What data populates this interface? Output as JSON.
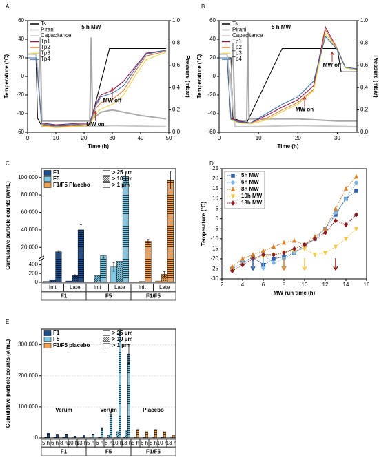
{
  "chart_data": [
    {
      "type": "line",
      "panel": "A",
      "annotations": [
        "5 h MW",
        "MW on",
        "MW off"
      ],
      "xlabel": "Time (h)",
      "ylabel": "Temperature (°C)",
      "y2label": "Pressure (mbar)",
      "xlim": [
        0,
        50
      ],
      "xticks": [
        0,
        10,
        20,
        30,
        40,
        50
      ],
      "ylim": [
        -60,
        60
      ],
      "yticks": [
        -60,
        -40,
        -20,
        0,
        20,
        40,
        60
      ],
      "y2lim": [
        0,
        1
      ],
      "y2ticks": [
        {
          "value": 0,
          "label": "0.0"
        },
        0.2,
        0.4,
        0.6,
        0.8,
        {
          "value": 1,
          "label": "1.0"
        }
      ],
      "series": [
        {
          "name": "Ts",
          "color": "#000000",
          "x": [
            0,
            3,
            3.5,
            5,
            22,
            29,
            49
          ],
          "values": [
            20,
            20,
            -45,
            -53,
            -53,
            30,
            30
          ]
        },
        {
          "name": "Pirani",
          "color": "#a8a8a8",
          "axis": "y2",
          "x": [
            0,
            3,
            4,
            4.5,
            5,
            22,
            22.5,
            23,
            26,
            30,
            40,
            49
          ],
          "values": [
            0.7,
            0.7,
            0.45,
            0.85,
            0.1,
            0.1,
            0.85,
            0.12,
            0.18,
            0.2,
            0.15,
            0.12
          ]
        },
        {
          "name": "Capacitance",
          "color": "#c8c8c8",
          "axis": "y2",
          "x": [
            0,
            3,
            4,
            5,
            22,
            23,
            30,
            49
          ],
          "values": [
            0.7,
            0.7,
            0.4,
            0.05,
            0.05,
            0.05,
            0.06,
            0.05
          ]
        },
        {
          "name": "Tp1",
          "color": "#8b1a4a",
          "x": [
            0,
            3,
            5,
            10,
            20,
            22,
            24,
            26,
            30,
            34,
            38,
            42,
            49
          ],
          "values": [
            20,
            20,
            -50,
            -52,
            -50,
            -50,
            -30,
            -20,
            -15,
            -5,
            10,
            25,
            28
          ]
        },
        {
          "name": "Tp2",
          "color": "#e07b39",
          "x": [
            0,
            3,
            5,
            10,
            20,
            22,
            24,
            26,
            30,
            34,
            38,
            42,
            49
          ],
          "values": [
            20,
            20,
            -52,
            -54,
            -52,
            -52,
            -35,
            -28,
            -25,
            -15,
            5,
            22,
            27
          ]
        },
        {
          "name": "Tp3",
          "color": "#e8d44d",
          "x": [
            0,
            3,
            5,
            10,
            20,
            22,
            24,
            26,
            30,
            34,
            38,
            42,
            49
          ],
          "values": [
            20,
            20,
            -53,
            -55,
            -53,
            -53,
            -40,
            -35,
            -30,
            -20,
            0,
            18,
            26
          ]
        },
        {
          "name": "Tp4",
          "color": "#3b6fb6",
          "x": [
            0,
            3,
            5,
            10,
            20,
            22,
            24,
            26,
            30,
            34,
            38,
            42,
            49
          ],
          "values": [
            20,
            20,
            -51,
            -53,
            -51,
            -51,
            -32,
            -22,
            -18,
            -10,
            8,
            24,
            28
          ]
        }
      ]
    },
    {
      "type": "line",
      "panel": "B",
      "annotations": [
        "5 h MW",
        "MW on",
        "MW off"
      ],
      "xlabel": "Time (h)",
      "ylabel": "Temperature (°C)",
      "y2label": "Pressure (mbar)",
      "xlim": [
        0,
        35
      ],
      "xticks": [
        0,
        10,
        20,
        30
      ],
      "ylim": [
        -60,
        60
      ],
      "yticks": [
        -60,
        -40,
        -20,
        0,
        20,
        40,
        60
      ],
      "y2lim": [
        0,
        1
      ],
      "y2ticks": [
        {
          "value": 0,
          "label": "0.0"
        },
        0.2,
        0.4,
        0.6,
        0.8,
        {
          "value": 1,
          "label": "1.0"
        }
      ],
      "series": [
        {
          "name": "Ts",
          "color": "#000000",
          "x": [
            0,
            3,
            3.5,
            7,
            16,
            30,
            31,
            35
          ],
          "values": [
            20,
            20,
            -45,
            -50,
            30,
            30,
            5,
            5
          ]
        },
        {
          "name": "Pirani",
          "color": "#a8a8a8",
          "axis": "y2",
          "x": [
            0,
            2,
            3,
            3.5,
            4,
            7,
            7.3,
            7.6,
            10,
            20,
            30,
            35
          ],
          "values": [
            0.7,
            0.7,
            0.45,
            0.8,
            0.1,
            0.1,
            0.9,
            0.12,
            0.12,
            0.12,
            0.1,
            0.1
          ]
        },
        {
          "name": "Capacitance",
          "color": "#c8c8c8",
          "axis": "y2",
          "x": [
            0,
            2,
            3,
            4,
            7,
            8,
            20,
            35
          ],
          "values": [
            0.7,
            0.7,
            0.4,
            0.05,
            0.05,
            0.05,
            0.06,
            0.05
          ]
        },
        {
          "name": "Tp1",
          "color": "#8b1a4a",
          "x": [
            0,
            2,
            3,
            5,
            8,
            12,
            16,
            20,
            24,
            27,
            30,
            32,
            35
          ],
          "values": [
            20,
            20,
            -45,
            -48,
            -50,
            -42,
            -33,
            -25,
            -10,
            53,
            30,
            10,
            8
          ]
        },
        {
          "name": "Tp2",
          "color": "#e07b39",
          "x": [
            0,
            2,
            3,
            5,
            8,
            12,
            16,
            20,
            24,
            27,
            30,
            32,
            35
          ],
          "values": [
            20,
            20,
            -46,
            -49,
            -50,
            -45,
            -36,
            -28,
            -14,
            50,
            30,
            10,
            8
          ]
        },
        {
          "name": "Tp3",
          "color": "#e8d44d",
          "x": [
            0,
            2,
            3,
            5,
            8,
            12,
            16,
            20,
            24,
            27,
            30,
            32,
            35
          ],
          "values": [
            20,
            20,
            -47,
            -50,
            -51,
            -47,
            -38,
            -30,
            -15,
            46,
            29,
            9,
            7
          ]
        },
        {
          "name": "Tp4",
          "color": "#3b6fb6",
          "x": [
            0,
            2,
            3,
            5,
            8,
            12,
            16,
            20,
            24,
            27,
            30,
            32,
            35
          ],
          "values": [
            20,
            20,
            -46,
            -49,
            -50,
            -40,
            -30,
            -22,
            -5,
            43,
            29,
            10,
            8
          ]
        }
      ]
    },
    {
      "type": "bar",
      "panel": "C",
      "ylabel": "Cumulative particle counts (#/mL)",
      "ylim": [
        0,
        500
      ],
      "yticks": [
        0,
        200,
        400
      ],
      "ylim_upper": [
        10000,
        110000
      ],
      "yticks_upper": [
        {
          "value": 20000,
          "label": "20,000"
        },
        {
          "value": 40000,
          "label": "40,000"
        },
        {
          "value": 60000,
          "label": "60,000"
        },
        {
          "value": 80000,
          "label": "80,000"
        },
        {
          "value": 100000,
          "label": "100,000"
        }
      ],
      "legend": [
        {
          "name": "F1",
          "color": "#1f4e8c"
        },
        {
          "name": "F5",
          "color": "#7ec8e3"
        },
        {
          "name": "F1/F5 Placebo",
          "color": "#f0a050"
        }
      ],
      "patterns": [
        {
          "name": "> 25 µm",
          "pattern": "none"
        },
        {
          "name": "> 10 µm",
          "pattern": "diagonal"
        },
        {
          "name": "> 1 µm",
          "pattern": "horizontal"
        }
      ],
      "groups": [
        {
          "label": "F1",
          "categories": [
            "Init",
            "Late"
          ],
          "values": [
            [
              20,
              60,
              15000
            ],
            [
              30,
              150,
              40000
            ]
          ],
          "errors": [
            [
              null,
              null,
              1200
            ],
            [
              null,
              20,
              6000
            ]
          ]
        },
        {
          "label": "F5",
          "categories": [
            "Init",
            "Late"
          ],
          "values": [
            [
              10,
              150,
              10500
            ],
            [
              350,
              480,
              101000
            ]
          ],
          "errors": [
            [
              null,
              null,
              800
            ],
            [
              100,
              null,
              5000
            ]
          ]
        },
        {
          "label": "F1/F5",
          "categories": [
            "Init",
            "Late"
          ],
          "values": [
            [
              10,
              20,
              27000
            ],
            [
              30,
              180,
              97000
            ]
          ],
          "errors": [
            [
              null,
              null,
              2000
            ],
            [
              null,
              60,
              10000
            ]
          ]
        }
      ]
    },
    {
      "type": "line",
      "panel": "D",
      "xlabel": "MW run time (h)",
      "ylabel": "Temperature (°C)",
      "xlim": [
        2,
        16
      ],
      "xticks": [
        2,
        4,
        6,
        8,
        10,
        12,
        14,
        16
      ],
      "ylim": [
        -30,
        25
      ],
      "yticks": [
        -30,
        -25,
        -20,
        -15,
        -10,
        -5,
        0,
        5,
        10,
        15,
        20,
        25
      ],
      "arrows_x": [
        5,
        6,
        8,
        10,
        13
      ],
      "series": [
        {
          "name": "5h MW",
          "color": "#2e5fa8",
          "marker": "square",
          "linestyle": "dotted",
          "x": [
            3,
            4,
            5,
            6,
            7,
            8,
            9,
            10,
            11,
            12,
            13,
            14,
            15
          ],
          "values": [
            -25,
            -22,
            -19,
            -23,
            -20,
            -19,
            -17,
            -13,
            -10,
            -5,
            2,
            10,
            14
          ]
        },
        {
          "name": "6h MW",
          "color": "#7db7e8",
          "marker": "circle",
          "linestyle": "dotted",
          "x": [
            3,
            4,
            5,
            6,
            7,
            8,
            9,
            10,
            11,
            12,
            13,
            14,
            15
          ],
          "values": [
            -25,
            -22,
            -20,
            -18,
            -22,
            -20,
            -17,
            -14,
            -10,
            -5,
            3,
            10,
            18
          ]
        },
        {
          "name": "8h MW",
          "color": "#d9822b",
          "marker": "triangle",
          "linestyle": "dotted",
          "x": [
            3,
            4,
            5,
            6,
            7,
            8,
            9,
            10,
            11,
            12,
            13,
            14,
            15
          ],
          "values": [
            -24,
            -20,
            -18,
            -16,
            -14,
            -12,
            -11,
            -13,
            -9,
            -5,
            5,
            15,
            21
          ]
        },
        {
          "name": "10h MW",
          "color": "#f2c94c",
          "marker": "triangle-down",
          "linestyle": "dotted",
          "x": [
            3,
            4,
            5,
            6,
            7,
            8,
            9,
            10,
            11,
            12,
            13,
            14,
            15
          ],
          "values": [
            -26,
            -23,
            -20,
            -19,
            -18,
            -17,
            -16,
            -15,
            -18,
            -17,
            -14,
            -10,
            -5
          ]
        },
        {
          "name": "13h MW",
          "color": "#8b1a1a",
          "marker": "diamond",
          "linestyle": "dotted",
          "x": [
            3,
            4,
            5,
            6,
            7,
            8,
            9,
            10,
            11,
            12,
            13,
            14,
            15
          ],
          "values": [
            -26,
            -23,
            -20,
            -18,
            -18,
            -17,
            -15,
            -13,
            -10,
            -7,
            -1,
            -3,
            2
          ]
        }
      ]
    },
    {
      "type": "bar",
      "panel": "E",
      "ylabel": "Cumulative particle counts (#/mL)",
      "grid": true,
      "ylim": [
        0,
        350000
      ],
      "yticks": [
        0,
        {
          "value": 100000,
          "label": "100,000"
        },
        {
          "value": 200000,
          "label": "200,000"
        },
        {
          "value": 300000,
          "label": "300,000"
        }
      ],
      "legend": [
        {
          "name": "F1",
          "color": "#1f4e8c"
        },
        {
          "name": "F5",
          "color": "#7ec8e3"
        },
        {
          "name": "F1/F5 placebo",
          "color": "#f0a050"
        }
      ],
      "patterns": [
        {
          "name": "> 25 µm",
          "pattern": "none"
        },
        {
          "name": "> 10 µm",
          "pattern": "diagonal"
        },
        {
          "name": "> 1 µm",
          "pattern": "horizontal"
        }
      ],
      "groups": [
        {
          "label": "F1",
          "sublabel": "Verum",
          "categories": [
            "5 h",
            "6 h",
            "8 h",
            "10 h",
            "13 h"
          ],
          "values": [
            [
              500,
              2000,
              15000
            ],
            [
              400,
              1500,
              10000
            ],
            [
              400,
              1500,
              11000
            ],
            [
              300,
              1000,
              6000
            ],
            [
              300,
              1000,
              8000
            ]
          ]
        },
        {
          "label": "F5",
          "sublabel": "Verum",
          "categories": [
            "5 h",
            "6 h",
            "8 h",
            "10 h",
            "13 h"
          ],
          "values": [
            [
              200,
              1000,
              10000
            ],
            [
              300,
              2000,
              30000
            ],
            [
              500,
              8000,
              75000
            ],
            [
              1000,
              20000,
              340000
            ],
            [
              2000,
              25000,
              270000
            ]
          ],
          "errors": [
            [
              null,
              null,
              1000
            ],
            [
              null,
              null,
              3000
            ],
            [
              null,
              null,
              6000
            ],
            [
              null,
              null,
              10000
            ],
            [
              null,
              null,
              30000
            ]
          ]
        },
        {
          "label": "F1/F5",
          "sublabel": "Placebo",
          "categories": [
            "5 h",
            "6 h",
            "8 h",
            "10 h",
            "13 h"
          ],
          "values": [
            [
              300,
              3000,
              27000
            ],
            [
              200,
              2000,
              20000
            ],
            [
              300,
              3000,
              27000
            ],
            [
              200,
              2000,
              20000
            ],
            [
              100,
              1000,
              8000
            ]
          ]
        }
      ]
    }
  ]
}
